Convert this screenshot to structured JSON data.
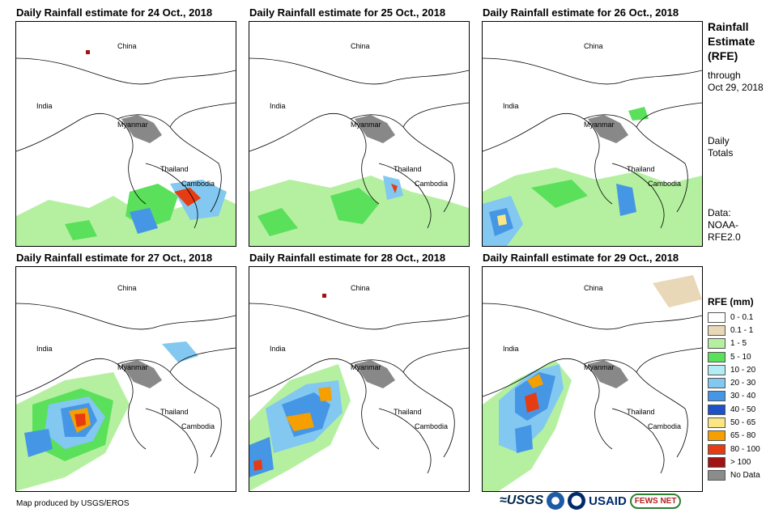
{
  "panels": [
    {
      "title": "Daily Rainfall estimate for 24 Oct., 2018"
    },
    {
      "title": "Daily Rainfall estimate for 25 Oct., 2018"
    },
    {
      "title": "Daily Rainfall estimate for 26 Oct., 2018"
    },
    {
      "title": "Daily Rainfall estimate for 27 Oct., 2018"
    },
    {
      "title": "Daily Rainfall estimate for 28 Oct., 2018"
    },
    {
      "title": "Daily Rainfall estimate for 29 Oct., 2018"
    }
  ],
  "map_labels": {
    "china": "China",
    "india": "India",
    "myanmar": "Myanmar",
    "thailand": "Thailand",
    "cambodia": "Cambodia"
  },
  "sidebar": {
    "title_line1": "Rainfall",
    "title_line2": "Estimate",
    "title_line3": "(RFE)",
    "through": "through",
    "date": "Oct 29, 2018",
    "daily": "Daily",
    "totals": "Totals",
    "data_label": "Data:",
    "data_src1": "NOAA-",
    "data_src2": "RFE2.0"
  },
  "legend": {
    "title": "RFE (mm)",
    "items": [
      {
        "label": "0 - 0.1",
        "color": "#ffffff"
      },
      {
        "label": "0.1 - 1",
        "color": "#e8d8b8"
      },
      {
        "label": "1 - 5",
        "color": "#b4f0a0"
      },
      {
        "label": "5 - 10",
        "color": "#5ae05a"
      },
      {
        "label": "10 - 20",
        "color": "#b4ecf4"
      },
      {
        "label": "20 - 30",
        "color": "#82c8f0"
      },
      {
        "label": "30 - 40",
        "color": "#4696e6"
      },
      {
        "label": "40 - 50",
        "color": "#1e50c8"
      },
      {
        "label": "50 - 65",
        "color": "#fae682"
      },
      {
        "label": "65 - 80",
        "color": "#f5a000"
      },
      {
        "label": "80 - 100",
        "color": "#e63c14"
      },
      {
        "label": "> 100",
        "color": "#a01414"
      },
      {
        "label": "No Data",
        "color": "#8c8c8c"
      }
    ]
  },
  "footer": {
    "credit": "Map produced by USGS/EROS",
    "logo_usgs": "≈USGS",
    "logo_usaid": "USAID",
    "logo_fews": "FEWS NET"
  }
}
